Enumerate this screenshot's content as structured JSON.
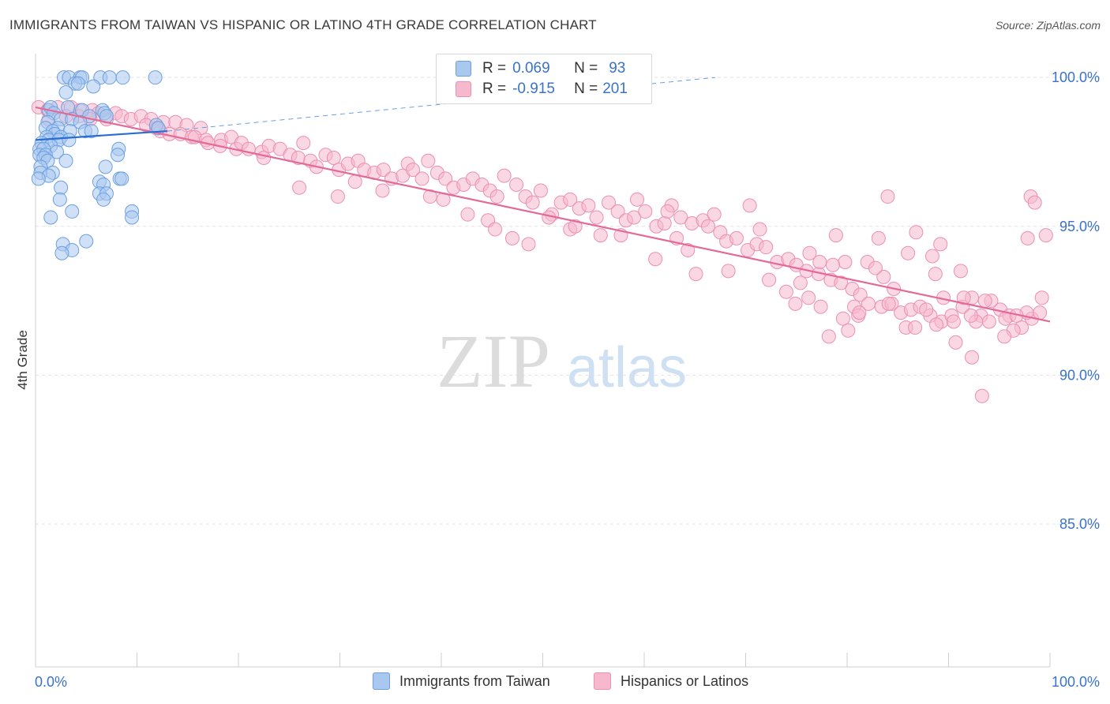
{
  "header": {
    "title": "IMMIGRANTS FROM TAIWAN VS HISPANIC OR LATINO 4TH GRADE CORRELATION CHART",
    "source": "Source: ZipAtlas.com"
  },
  "watermark": {
    "zip": "ZIP",
    "atlas": "atlas"
  },
  "legend": {
    "rows": [
      {
        "r_label": "R =",
        "r_value": "0.069",
        "n_label": "N =",
        "n_value": "93",
        "color": "#a9c8f0"
      },
      {
        "r_label": "R =",
        "r_value": "-0.915",
        "n_label": "N =",
        "n_value": "201",
        "color": "#f6b8cc"
      }
    ]
  },
  "bottom_legend": {
    "series1": "Immigrants from Taiwan",
    "series2": "Hispanics or Latinos"
  },
  "colors": {
    "blue_fill": "#a9c8f0",
    "blue_stroke": "#6b9fe0",
    "blue_line": "#2a6dd2",
    "pink_fill": "#f6b8cc",
    "pink_stroke": "#ec8fb0",
    "pink_line": "#e36a97",
    "tick_label": "#3a72c9",
    "grid": "#e2e2e2"
  },
  "chart_data": {
    "type": "scatter",
    "title": "IMMIGRANTS FROM TAIWAN VS HISPANIC OR LATINO 4TH GRADE CORRELATION CHART",
    "xlabel": "",
    "ylabel": "4th Grade",
    "xlim": [
      0,
      100
    ],
    "ylim": [
      80.2,
      100.8
    ],
    "x_tick_labels": [
      "0.0%",
      "100.0%"
    ],
    "y_ticks": [
      100,
      95,
      90,
      85
    ],
    "y_tick_labels": [
      "100.0%",
      "95.0%",
      "90.0%",
      "85.0%"
    ],
    "grid": true,
    "legend_position": "top-center",
    "series": [
      {
        "name": "Immigrants from Taiwan",
        "r": 0.069,
        "n": 93,
        "trend": {
          "x": [
            0,
            13
          ],
          "y": [
            97.9,
            98.2
          ]
        },
        "trend_dashed": {
          "x": [
            13,
            67
          ],
          "y": [
            98.2,
            100.0
          ]
        },
        "points": [
          [
            2.8,
            100
          ],
          [
            3.3,
            100
          ],
          [
            4.4,
            100
          ],
          [
            4.6,
            100
          ],
          [
            6.4,
            100
          ],
          [
            7.3,
            100
          ],
          [
            8.6,
            100
          ],
          [
            11.8,
            100
          ],
          [
            3.9,
            99.8
          ],
          [
            4.2,
            99.8
          ],
          [
            5.7,
            99.7
          ],
          [
            3.0,
            99.5
          ],
          [
            1.3,
            98.9
          ],
          [
            1.5,
            99.0
          ],
          [
            3.2,
            99.0
          ],
          [
            4.6,
            98.9
          ],
          [
            6.6,
            98.9
          ],
          [
            6.8,
            98.8
          ],
          [
            1.8,
            98.8
          ],
          [
            5.3,
            98.7
          ],
          [
            7.0,
            98.7
          ],
          [
            2.5,
            98.6
          ],
          [
            3.6,
            98.6
          ],
          [
            1.2,
            98.5
          ],
          [
            4.4,
            98.5
          ],
          [
            2.2,
            98.3
          ],
          [
            11.9,
            98.4
          ],
          [
            12.1,
            98.3
          ],
          [
            1.0,
            98.3
          ],
          [
            1.7,
            98.2
          ],
          [
            3.4,
            98.2
          ],
          [
            4.9,
            98.2
          ],
          [
            5.5,
            98.2
          ],
          [
            1.9,
            98.1
          ],
          [
            2.5,
            98.0
          ],
          [
            1.1,
            98.0
          ],
          [
            1.3,
            97.9
          ],
          [
            2.3,
            97.9
          ],
          [
            3.3,
            97.9
          ],
          [
            0.6,
            97.8
          ],
          [
            1.5,
            97.7
          ],
          [
            0.4,
            97.6
          ],
          [
            0.8,
            97.6
          ],
          [
            2.1,
            97.5
          ],
          [
            0.4,
            97.4
          ],
          [
            1.0,
            97.4
          ],
          [
            0.8,
            97.3
          ],
          [
            1.2,
            97.2
          ],
          [
            3.0,
            97.2
          ],
          [
            8.2,
            97.6
          ],
          [
            8.1,
            97.4
          ],
          [
            0.5,
            97.0
          ],
          [
            0.5,
            96.8
          ],
          [
            1.7,
            96.8
          ],
          [
            1.3,
            96.7
          ],
          [
            0.3,
            96.6
          ],
          [
            6.9,
            97.0
          ],
          [
            6.3,
            96.5
          ],
          [
            8.3,
            96.6
          ],
          [
            8.5,
            96.6
          ],
          [
            6.7,
            96.4
          ],
          [
            2.5,
            96.3
          ],
          [
            6.3,
            96.1
          ],
          [
            7.0,
            96.1
          ],
          [
            2.4,
            95.9
          ],
          [
            6.7,
            95.9
          ],
          [
            3.6,
            95.5
          ],
          [
            9.5,
            95.5
          ],
          [
            1.5,
            95.3
          ],
          [
            9.5,
            95.3
          ],
          [
            5.0,
            94.5
          ],
          [
            2.7,
            94.4
          ],
          [
            3.6,
            94.2
          ],
          [
            2.6,
            94.1
          ]
        ]
      },
      {
        "name": "Hispanics or Latinos",
        "r": -0.915,
        "n": 201,
        "trend": {
          "x": [
            0,
            100
          ],
          "y": [
            99.0,
            91.8
          ]
        },
        "points": [
          [
            0.3,
            99.0
          ],
          [
            1.2,
            98.9
          ],
          [
            2.2,
            99.0
          ],
          [
            3.5,
            99.0
          ],
          [
            4.4,
            98.9
          ],
          [
            5.6,
            98.9
          ],
          [
            6.2,
            98.8
          ],
          [
            7.9,
            98.8
          ],
          [
            1.3,
            98.6
          ],
          [
            3.0,
            98.7
          ],
          [
            4.3,
            98.7
          ],
          [
            5.4,
            98.6
          ],
          [
            7.0,
            98.6
          ],
          [
            8.5,
            98.7
          ],
          [
            9.4,
            98.6
          ],
          [
            10.4,
            98.7
          ],
          [
            11.4,
            98.6
          ],
          [
            12.6,
            98.5
          ],
          [
            13.8,
            98.5
          ],
          [
            14.9,
            98.4
          ],
          [
            10.9,
            98.4
          ],
          [
            11.9,
            98.3
          ],
          [
            12.3,
            98.2
          ],
          [
            13.2,
            98.1
          ],
          [
            14.3,
            98.1
          ],
          [
            15.4,
            98.0
          ],
          [
            16.3,
            98.3
          ],
          [
            15.7,
            98.0
          ],
          [
            16.8,
            97.9
          ],
          [
            18.3,
            97.9
          ],
          [
            19.3,
            98.0
          ],
          [
            18.2,
            97.7
          ],
          [
            17.0,
            97.8
          ],
          [
            19.8,
            97.6
          ],
          [
            20.3,
            97.8
          ],
          [
            21.0,
            97.6
          ],
          [
            22.3,
            97.5
          ],
          [
            22.5,
            97.3
          ],
          [
            23.0,
            97.7
          ],
          [
            24.1,
            97.6
          ],
          [
            25.1,
            97.4
          ],
          [
            25.9,
            97.3
          ],
          [
            26.4,
            97.8
          ],
          [
            27.1,
            97.2
          ],
          [
            27.7,
            97.0
          ],
          [
            28.6,
            97.4
          ],
          [
            29.4,
            97.3
          ],
          [
            29.9,
            96.9
          ],
          [
            30.8,
            97.1
          ],
          [
            31.8,
            97.2
          ],
          [
            32.4,
            96.9
          ],
          [
            33.4,
            96.8
          ],
          [
            34.3,
            96.9
          ],
          [
            35.1,
            96.6
          ],
          [
            36.2,
            96.7
          ],
          [
            36.7,
            97.1
          ],
          [
            37.2,
            96.9
          ],
          [
            38.1,
            96.6
          ],
          [
            38.7,
            97.2
          ],
          [
            39.6,
            96.8
          ],
          [
            40.4,
            96.6
          ],
          [
            41.2,
            96.3
          ],
          [
            42.2,
            96.4
          ],
          [
            43.1,
            96.6
          ],
          [
            44.0,
            96.4
          ],
          [
            44.8,
            96.2
          ],
          [
            45.5,
            96.0
          ],
          [
            46.2,
            96.7
          ],
          [
            47.4,
            96.4
          ],
          [
            48.3,
            96.0
          ],
          [
            49.0,
            95.8
          ],
          [
            49.8,
            96.2
          ],
          [
            50.9,
            95.4
          ],
          [
            51.8,
            95.8
          ],
          [
            52.7,
            95.9
          ],
          [
            53.6,
            95.6
          ],
          [
            54.5,
            95.7
          ],
          [
            55.3,
            95.3
          ],
          [
            56.5,
            95.8
          ],
          [
            57.4,
            95.5
          ],
          [
            58.2,
            95.2
          ],
          [
            59.0,
            95.3
          ],
          [
            60.1,
            95.5
          ],
          [
            61.2,
            95.0
          ],
          [
            62.0,
            95.1
          ],
          [
            62.7,
            95.7
          ],
          [
            63.6,
            95.3
          ],
          [
            64.7,
            95.1
          ],
          [
            65.8,
            95.2
          ],
          [
            66.3,
            95.0
          ],
          [
            67.5,
            94.8
          ],
          [
            68.1,
            94.5
          ],
          [
            69.1,
            94.6
          ],
          [
            70.2,
            94.2
          ],
          [
            71.1,
            94.4
          ],
          [
            72.0,
            94.3
          ],
          [
            73.1,
            93.8
          ],
          [
            74.2,
            93.9
          ],
          [
            75.0,
            93.7
          ],
          [
            76.0,
            93.5
          ],
          [
            77.2,
            93.4
          ],
          [
            78.4,
            93.2
          ],
          [
            79.4,
            93.1
          ],
          [
            80.5,
            92.9
          ],
          [
            81.3,
            92.7
          ],
          [
            82.1,
            92.4
          ],
          [
            83.4,
            92.3
          ],
          [
            84.4,
            92.4
          ],
          [
            85.3,
            92.1
          ],
          [
            86.3,
            92.2
          ],
          [
            87.2,
            92.3
          ],
          [
            88.2,
            92.0
          ],
          [
            89.3,
            91.8
          ],
          [
            90.3,
            92.0
          ],
          [
            91.4,
            92.3
          ],
          [
            92.3,
            92.6
          ],
          [
            93.2,
            92.0
          ],
          [
            94.0,
            91.8
          ],
          [
            95.1,
            92.2
          ],
          [
            96.0,
            92.0
          ],
          [
            97.2,
            91.6
          ],
          [
            98.2,
            91.9
          ],
          [
            99.0,
            92.1
          ],
          [
            26.0,
            96.3
          ],
          [
            29.8,
            96.0
          ],
          [
            31.5,
            96.5
          ],
          [
            34.2,
            96.2
          ],
          [
            38.9,
            96.0
          ],
          [
            40.2,
            95.9
          ],
          [
            42.6,
            95.4
          ],
          [
            44.6,
            95.2
          ],
          [
            45.3,
            94.9
          ],
          [
            47.0,
            94.6
          ],
          [
            48.6,
            94.4
          ],
          [
            50.6,
            95.3
          ],
          [
            52.7,
            94.9
          ],
          [
            53.2,
            95.0
          ],
          [
            55.7,
            94.7
          ],
          [
            57.7,
            94.7
          ],
          [
            59.3,
            95.9
          ],
          [
            61.1,
            93.9
          ],
          [
            62.3,
            95.5
          ],
          [
            63.2,
            94.6
          ],
          [
            64.3,
            94.2
          ],
          [
            65.1,
            93.4
          ],
          [
            66.9,
            95.4
          ],
          [
            68.3,
            93.5
          ],
          [
            70.4,
            95.7
          ],
          [
            71.4,
            94.9
          ],
          [
            72.3,
            93.2
          ],
          [
            74.0,
            92.8
          ],
          [
            74.9,
            92.4
          ],
          [
            76.2,
            92.6
          ],
          [
            77.3,
            93.8
          ],
          [
            78.9,
            94.7
          ],
          [
            79.8,
            93.8
          ],
          [
            80.7,
            92.3
          ],
          [
            82.0,
            93.8
          ],
          [
            83.6,
            93.3
          ],
          [
            84.6,
            92.9
          ],
          [
            85.8,
            91.6
          ],
          [
            87.8,
            92.2
          ],
          [
            88.8,
            91.7
          ],
          [
            89.5,
            92.6
          ],
          [
            90.5,
            91.8
          ],
          [
            91.5,
            92.6
          ],
          [
            92.7,
            91.8
          ],
          [
            94.2,
            92.5
          ],
          [
            95.6,
            91.9
          ],
          [
            96.4,
            91.5
          ],
          [
            97.7,
            92.1
          ],
          [
            99.2,
            92.6
          ],
          [
            81.1,
            92.0
          ],
          [
            79.6,
            91.9
          ],
          [
            82.8,
            93.6
          ],
          [
            84.1,
            92.4
          ],
          [
            86.7,
            91.6
          ],
          [
            88.4,
            94.0
          ],
          [
            89.2,
            94.4
          ],
          [
            91.2,
            93.5
          ],
          [
            92.2,
            92.0
          ],
          [
            93.6,
            92.5
          ],
          [
            95.5,
            91.3
          ],
          [
            96.7,
            92.0
          ],
          [
            97.8,
            94.6
          ],
          [
            99.6,
            94.7
          ],
          [
            98.1,
            96.0
          ],
          [
            98.5,
            95.8
          ],
          [
            84.0,
            96.0
          ],
          [
            86.8,
            94.8
          ],
          [
            88.7,
            93.4
          ],
          [
            90.7,
            91.1
          ],
          [
            92.3,
            90.6
          ],
          [
            93.3,
            89.3
          ],
          [
            86.0,
            94.1
          ],
          [
            83.1,
            94.6
          ],
          [
            78.2,
            91.3
          ],
          [
            80.1,
            91.5
          ],
          [
            81.2,
            92.1
          ],
          [
            78.6,
            93.7
          ],
          [
            77.4,
            92.3
          ],
          [
            76.3,
            94.1
          ],
          [
            75.4,
            93.1
          ]
        ]
      }
    ]
  }
}
